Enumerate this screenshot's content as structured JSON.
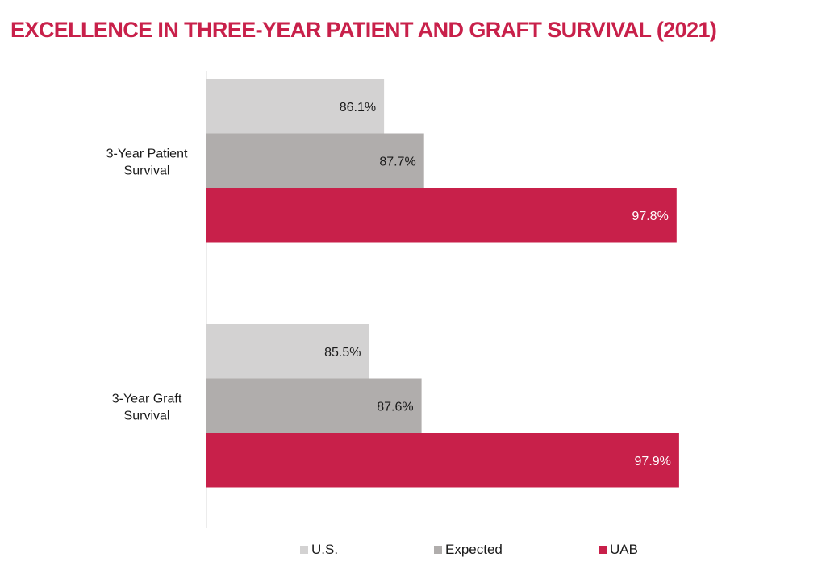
{
  "chart_data": {
    "type": "bar",
    "orientation": "horizontal",
    "title": "EXCELLENCE IN THREE-YEAR PATIENT AND GRAFT SURVIVAL (2021)",
    "categories": [
      "3-Year Patient Survival",
      "3-Year Graft Survival"
    ],
    "category_label_lines": [
      [
        "3-Year Patient",
        "Survival"
      ],
      [
        "3-Year Graft",
        "Survival"
      ]
    ],
    "series": [
      {
        "name": "U.S.",
        "color": "#d3d2d2",
        "label_color": "#1a1a1a",
        "values": [
          86.1,
          85.5
        ],
        "labels": [
          "86.1%",
          "85.5%"
        ]
      },
      {
        "name": "Expected",
        "color": "#b0adac",
        "label_color": "#1a1a1a",
        "values": [
          87.7,
          87.6
        ],
        "labels": [
          "87.7%",
          "87.6%"
        ]
      },
      {
        "name": "UAB",
        "color": "#c8204a",
        "label_color": "#ffffff",
        "values": [
          97.8,
          97.9
        ],
        "labels": [
          "97.8%",
          "97.9%"
        ]
      }
    ],
    "xlim": [
      79,
      99
    ],
    "grid": true,
    "grid_step": 1,
    "axis_labels_visible": false,
    "xlabel": "",
    "ylabel": "",
    "legend_position": "bottom"
  },
  "colors": {
    "title": "#c8204a",
    "gridline": "#ececec"
  }
}
